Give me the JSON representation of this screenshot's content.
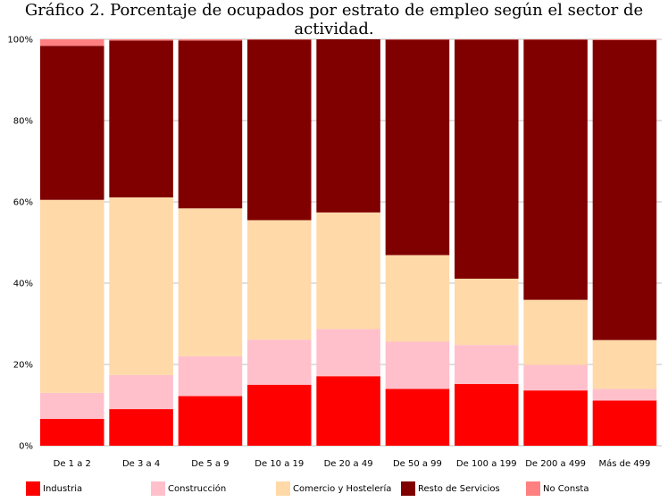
{
  "chart_data": {
    "type": "bar",
    "stacked": true,
    "title": "Gráfico 2. Porcentaje de ocupados por estrato de empleo según el sector de actividad.",
    "categories": [
      "De 1 a 2",
      "De 3 a 4",
      "De 5 a 9",
      "De 10 a 19",
      "De 20 a 49",
      "De 50 a 99",
      "De 100 a 199",
      "De 200 a 499",
      "Más de 499"
    ],
    "ylim": [
      0,
      100
    ],
    "yticks": [
      "0%",
      "20%",
      "40%",
      "60%",
      "80%",
      "100%"
    ],
    "grid": true,
    "legend_position": "bottom",
    "series": [
      {
        "name": "Industria",
        "color": "#ff0000",
        "values": [
          6.6,
          9.0,
          12.2,
          15.0,
          17.1,
          14.0,
          15.2,
          13.6,
          11.1
        ]
      },
      {
        "name": "Construcción",
        "color": "#ffc0cb",
        "values": [
          6.4,
          8.4,
          9.8,
          11.1,
          11.6,
          11.6,
          9.6,
          6.3,
          2.9
        ]
      },
      {
        "name": "Comercio y Hostelería",
        "color": "#ffd9a8",
        "values": [
          47.5,
          43.7,
          36.4,
          29.4,
          28.7,
          21.3,
          16.3,
          16.0,
          12.0
        ]
      },
      {
        "name": "Resto de Servicios",
        "color": "#800000",
        "values": [
          37.9,
          38.6,
          41.3,
          44.4,
          42.6,
          53.0,
          58.8,
          64.0,
          73.8
        ]
      },
      {
        "name": "No Consta",
        "color": "#ff8080",
        "values": [
          1.6,
          0.3,
          0.3,
          0.1,
          0.0,
          0.1,
          0.1,
          0.1,
          0.2
        ]
      }
    ]
  }
}
